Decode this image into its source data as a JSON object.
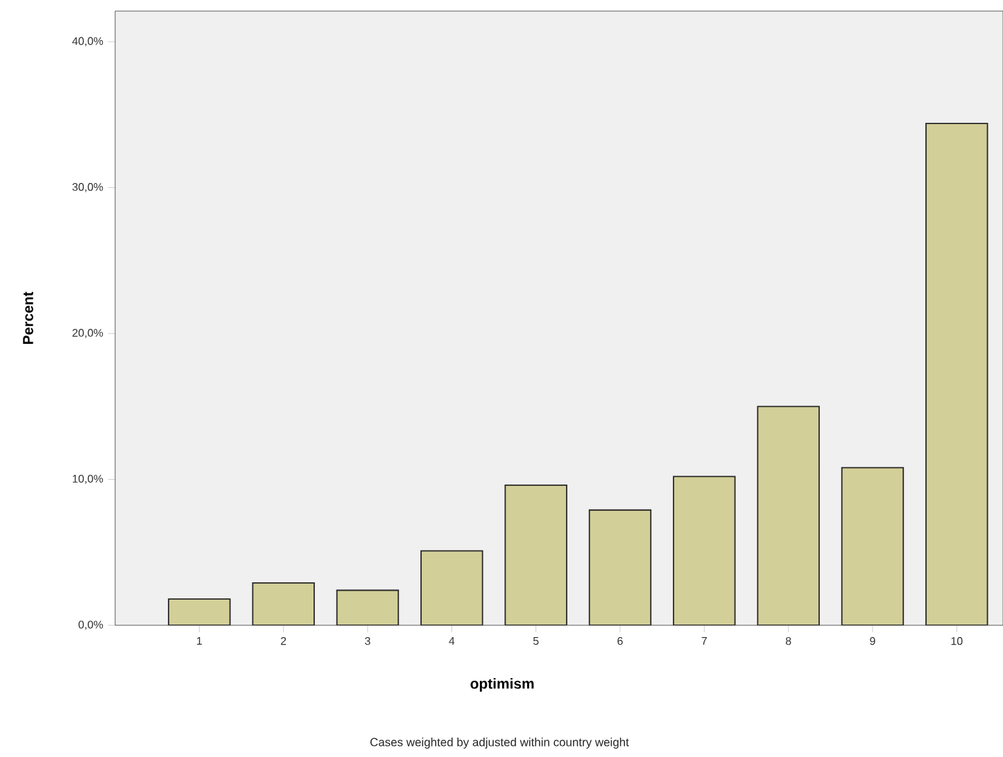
{
  "chart_data": {
    "type": "bar",
    "xlabel": "optimism",
    "ylabel": "Percent",
    "categories": [
      "1",
      "2",
      "3",
      "4",
      "5",
      "6",
      "7",
      "8",
      "9",
      "10"
    ],
    "values": [
      1.8,
      2.9,
      2.4,
      5.1,
      9.6,
      7.9,
      10.2,
      15.0,
      10.8,
      34.4
    ],
    "color": "#d3cf98",
    "ylim": [
      0,
      42.1
    ],
    "yticks": [
      {
        "value": 0,
        "label": "0,0%"
      },
      {
        "value": 10,
        "label": "10,0%"
      },
      {
        "value": 20,
        "label": "20,0%"
      },
      {
        "value": 30,
        "label": "30,0%"
      },
      {
        "value": 40,
        "label": "40,0%"
      }
    ],
    "grid": false,
    "annotations": [
      "Cases weighted by adjusted within country weight"
    ]
  }
}
